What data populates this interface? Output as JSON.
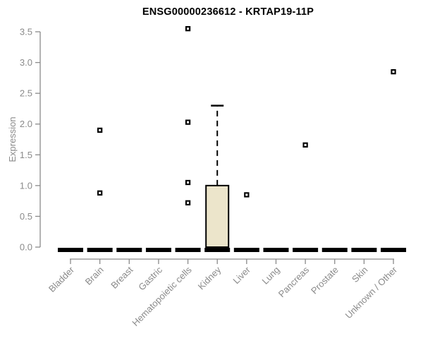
{
  "colors": {
    "axis": "#8a8a8a",
    "tick_label": "#8a8a8a",
    "box_fill": "#ece5cb",
    "mark": "#000000",
    "background": "#ffffff"
  },
  "chart_data": {
    "type": "boxplot",
    "title": "ENSG00000236612 - KRTAP19-11P",
    "xlabel": "",
    "ylabel": "Expression",
    "ylim": [
      0,
      3.5
    ],
    "yticks": [
      0.0,
      0.5,
      1.0,
      1.5,
      2.0,
      2.5,
      3.0,
      3.5
    ],
    "ytick_labels": [
      "0.0",
      "0.5",
      "1.0",
      "1.5",
      "2.0",
      "2.5",
      "3.0",
      "3.5"
    ],
    "grid": false,
    "legend": "none",
    "categories": [
      "Bladder",
      "Brain",
      "Breast",
      "Gastric",
      "Hematopoietic cells",
      "Kidney",
      "Liver",
      "Lung",
      "Pancreas",
      "Prostate",
      "Skin",
      "Unknown / Other"
    ],
    "boxes": [
      {
        "category": "Bladder",
        "whisker_low": 0,
        "q1": 0,
        "median": 0,
        "q3": 0,
        "whisker_high": 0,
        "outliers": []
      },
      {
        "category": "Brain",
        "whisker_low": 0,
        "q1": 0,
        "median": 0,
        "q3": 0,
        "whisker_high": 0,
        "outliers": [
          1.9,
          0.88
        ]
      },
      {
        "category": "Breast",
        "whisker_low": 0,
        "q1": 0,
        "median": 0,
        "q3": 0,
        "whisker_high": 0,
        "outliers": []
      },
      {
        "category": "Gastric",
        "whisker_low": 0,
        "q1": 0,
        "median": 0,
        "q3": 0,
        "whisker_high": 0,
        "outliers": []
      },
      {
        "category": "Hematopoietic cells",
        "whisker_low": 0,
        "q1": 0,
        "median": 0,
        "q3": 0,
        "whisker_high": 0,
        "outliers": [
          3.55,
          2.03,
          1.05,
          0.72
        ]
      },
      {
        "category": "Kidney",
        "whisker_low": 0,
        "q1": 0,
        "median": 0,
        "q3": 1.0,
        "whisker_high": 2.3,
        "outliers": []
      },
      {
        "category": "Liver",
        "whisker_low": 0,
        "q1": 0,
        "median": 0,
        "q3": 0,
        "whisker_high": 0,
        "outliers": [
          0.85
        ]
      },
      {
        "category": "Lung",
        "whisker_low": 0,
        "q1": 0,
        "median": 0,
        "q3": 0,
        "whisker_high": 0,
        "outliers": []
      },
      {
        "category": "Pancreas",
        "whisker_low": 0,
        "q1": 0,
        "median": 0,
        "q3": 0,
        "whisker_high": 0,
        "outliers": [
          1.66
        ]
      },
      {
        "category": "Prostate",
        "whisker_low": 0,
        "q1": 0,
        "median": 0,
        "q3": 0,
        "whisker_high": 0,
        "outliers": []
      },
      {
        "category": "Skin",
        "whisker_low": 0,
        "q1": 0,
        "median": 0,
        "q3": 0,
        "whisker_high": 0,
        "outliers": []
      },
      {
        "category": "Unknown / Other",
        "whisker_low": 0,
        "q1": 0,
        "median": 0,
        "q3": 0,
        "whisker_high": 0,
        "outliers": [
          2.85
        ]
      }
    ]
  }
}
